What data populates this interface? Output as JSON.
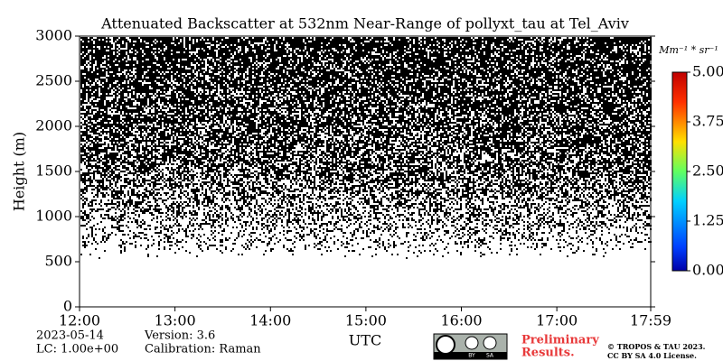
{
  "chart_data": {
    "type": "heatmap",
    "title": "Attenuated Backscatter at 532nm Near-Range of pollyxt_tau at Tel_Aviv",
    "x_label": "UTC",
    "y_label": "Height (m)",
    "xlim": [
      12,
      17.9833
    ],
    "xticks": [
      {
        "value": 12,
        "label": "12:00"
      },
      {
        "value": 13,
        "label": "13:00"
      },
      {
        "value": 14,
        "label": "14:00"
      },
      {
        "value": 15,
        "label": "15:00"
      },
      {
        "value": 16,
        "label": "16:00"
      },
      {
        "value": 17,
        "label": "17:00"
      },
      {
        "value": 17.9833,
        "label": "17:59"
      }
    ],
    "ylim": [
      0,
      3000
    ],
    "yticks": [
      0,
      500,
      1000,
      1500,
      2000,
      2500,
      3000
    ],
    "colorbar": {
      "label": "Mm⁻¹ * sr⁻¹",
      "lim": [
        0,
        5
      ],
      "ticks": [
        {
          "value": 0,
          "label": "0.00"
        },
        {
          "value": 1.25,
          "label": "1.25"
        },
        {
          "value": 2.5,
          "label": "2.50"
        },
        {
          "value": 3.75,
          "label": "3.75"
        },
        {
          "value": 5,
          "label": "5.00"
        }
      ]
    },
    "footer": {
      "date": "2023-05-14",
      "version": "Version: 3.6",
      "lc": "LC: 1.00e+00",
      "calibration": "Calibration: Raman",
      "preliminary": "Preliminary",
      "results": "Results.",
      "copyright": "© TROPOS & TAU 2023.",
      "license": "CC BY SA 4.0 License.",
      "badge_by": "BY",
      "badge_sa": "SA"
    }
  }
}
